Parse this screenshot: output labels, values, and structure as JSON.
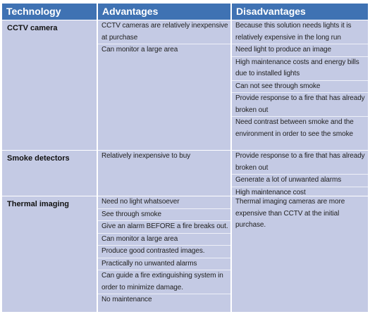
{
  "table": {
    "columns": [
      "Technology",
      "Advantages",
      "Disadvantages"
    ],
    "rows": [
      {
        "technology": "CCTV camera",
        "advantages": [
          "CCTV cameras are relatively inexpensive at purchase",
          "Can monitor a large area"
        ],
        "disadvantages": [
          "Because this solution needs lights it is relatively expensive in the long run",
          "Need light to produce an image",
          "High maintenance costs and energy bills due to installed lights",
          "Can not see through smoke",
          "Provide response to a fire that has already broken out",
          "Need contrast between smoke and the environment in order to see the smoke"
        ]
      },
      {
        "technology": "Smoke detectors",
        "advantages": [
          "Relatively inexpensive to buy"
        ],
        "disadvantages": [
          "Provide response to a fire that has already broken out",
          "Generate a lot of unwanted alarms",
          "High maintenance cost"
        ]
      },
      {
        "technology": "Thermal imaging",
        "advantages": [
          "Need no light whatsoever",
          "See through smoke",
          "Give an alarm BEFORE a fire breaks out.",
          "Can monitor a large area",
          "Produce good contrasted images.",
          "Practically no unwanted alarms",
          "Can guide a fire extinguishing system in order to minimize damage.",
          "No maintenance"
        ],
        "disadvantages": [
          "Thermal imaging cameras are more expensive than CCTV at the initial purchase."
        ]
      }
    ]
  }
}
